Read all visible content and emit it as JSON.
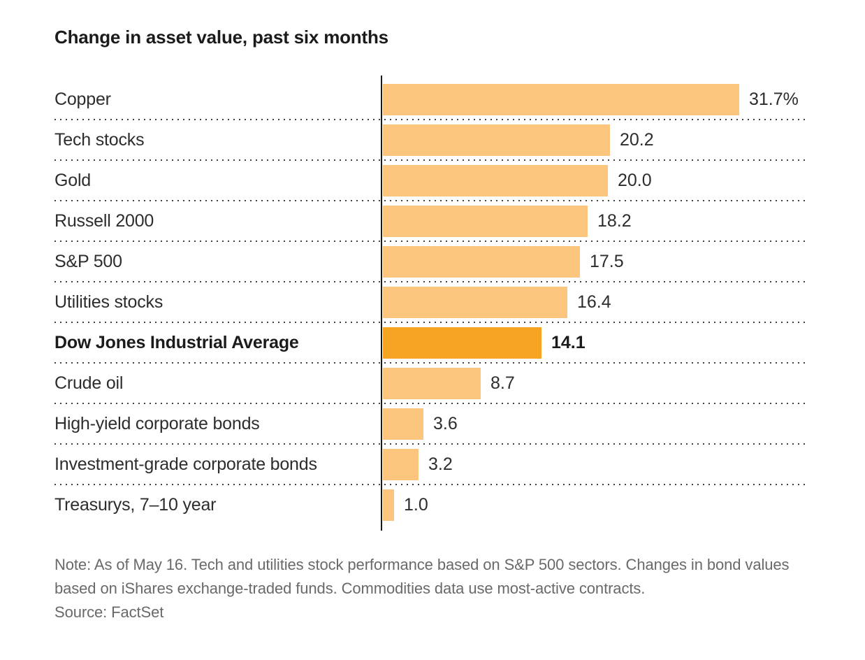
{
  "header": {
    "title": "Change in asset value, past six months"
  },
  "chart_data": {
    "type": "bar",
    "orientation": "horizontal",
    "title": "Change in asset value, past six months",
    "categories": [
      "Copper",
      "Tech stocks",
      "Gold",
      "Russell 2000",
      "S&P 500",
      "Utilities stocks",
      "Dow Jones Industrial Average",
      "Crude oil",
      "High-yield corporate bonds",
      "Investment-grade corporate bonds",
      "Treasurys, 7–10 year"
    ],
    "values": [
      31.7,
      20.2,
      20.0,
      18.2,
      17.5,
      16.4,
      14.1,
      8.7,
      3.6,
      3.2,
      1.0
    ],
    "value_labels": [
      "31.7%",
      "20.2",
      "20.0",
      "18.2",
      "17.5",
      "16.4",
      "14.1",
      "8.7",
      "3.6",
      "3.2",
      "1.0"
    ],
    "unit": "percent",
    "xlim": [
      0,
      31.7
    ],
    "highlight_index": 6,
    "highlight_category": "Dow Jones Industrial Average",
    "bar_color": "#FBC57E",
    "highlight_color": "#F6A421",
    "grid": "dotted horizontal row separators",
    "legend": "none",
    "axis": "single vertical zero baseline on left of bars"
  },
  "footer": {
    "note": "Note: As of May 16. Tech and utilities stock performance based on S&P 500 sectors. Changes in bond values based on iShares exchange-traded funds. Commodities data use most-active contracts.",
    "source": "Source: FactSet"
  }
}
